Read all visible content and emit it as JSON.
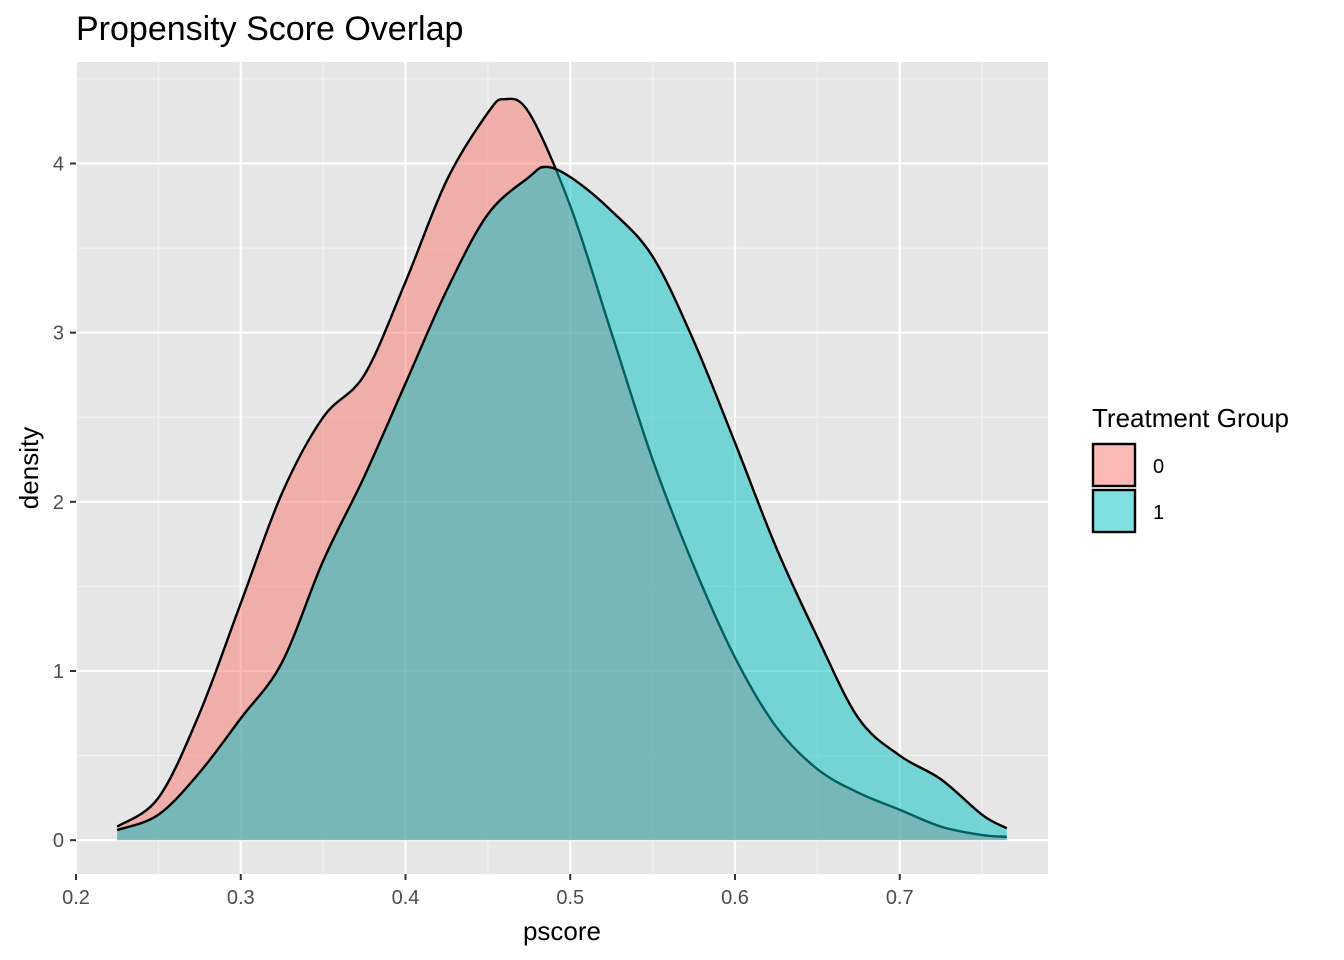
{
  "chart_data": {
    "type": "area",
    "title": "Propensity Score Overlap",
    "xlabel": "pscore",
    "ylabel": "density",
    "xlim": [
      0.2,
      0.79
    ],
    "ylim": [
      -0.2,
      4.6
    ],
    "x_ticks": [
      0.2,
      0.3,
      0.4,
      0.5,
      0.6,
      0.7
    ],
    "x_tick_labels": [
      "0.2",
      "0.3",
      "0.4",
      "0.5",
      "0.6",
      "0.7"
    ],
    "y_ticks": [
      0,
      1,
      2,
      3,
      4
    ],
    "y_tick_labels": [
      "0",
      "1",
      "2",
      "3",
      "4"
    ],
    "grid": true,
    "legend": {
      "title": "Treatment Group",
      "position": "right"
    },
    "series": [
      {
        "name": "0",
        "color": "#F8766D",
        "points": [
          [
            0.225,
            0.08
          ],
          [
            0.25,
            0.25
          ],
          [
            0.275,
            0.75
          ],
          [
            0.3,
            1.4
          ],
          [
            0.325,
            2.05
          ],
          [
            0.35,
            2.5
          ],
          [
            0.375,
            2.75
          ],
          [
            0.4,
            3.3
          ],
          [
            0.425,
            3.9
          ],
          [
            0.45,
            4.3
          ],
          [
            0.46,
            4.38
          ],
          [
            0.475,
            4.3
          ],
          [
            0.5,
            3.75
          ],
          [
            0.525,
            3.0
          ],
          [
            0.55,
            2.25
          ],
          [
            0.575,
            1.62
          ],
          [
            0.6,
            1.08
          ],
          [
            0.625,
            0.67
          ],
          [
            0.65,
            0.42
          ],
          [
            0.675,
            0.28
          ],
          [
            0.7,
            0.18
          ],
          [
            0.725,
            0.08
          ],
          [
            0.75,
            0.03
          ],
          [
            0.765,
            0.02
          ]
        ]
      },
      {
        "name": "1",
        "color": "#00BFC4",
        "points": [
          [
            0.225,
            0.06
          ],
          [
            0.25,
            0.15
          ],
          [
            0.275,
            0.4
          ],
          [
            0.3,
            0.72
          ],
          [
            0.325,
            1.05
          ],
          [
            0.35,
            1.65
          ],
          [
            0.375,
            2.15
          ],
          [
            0.4,
            2.7
          ],
          [
            0.425,
            3.25
          ],
          [
            0.45,
            3.7
          ],
          [
            0.475,
            3.92
          ],
          [
            0.485,
            3.98
          ],
          [
            0.5,
            3.92
          ],
          [
            0.525,
            3.72
          ],
          [
            0.55,
            3.45
          ],
          [
            0.575,
            2.95
          ],
          [
            0.6,
            2.35
          ],
          [
            0.625,
            1.73
          ],
          [
            0.65,
            1.2
          ],
          [
            0.675,
            0.72
          ],
          [
            0.7,
            0.5
          ],
          [
            0.725,
            0.36
          ],
          [
            0.75,
            0.15
          ],
          [
            0.765,
            0.07
          ]
        ]
      }
    ]
  }
}
